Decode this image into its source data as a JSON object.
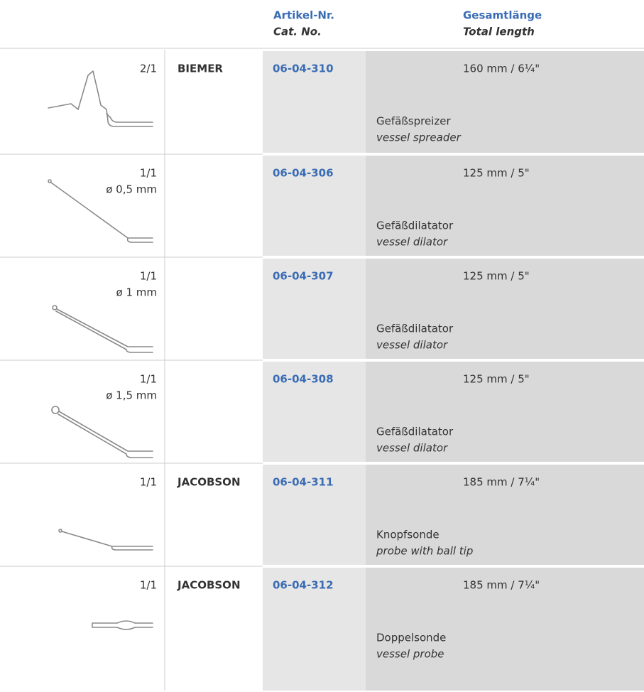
{
  "header": {
    "cat_no_de": "Artikel-Nr.",
    "cat_no_en": "Cat. No.",
    "length_de": "Gesamtlänge",
    "length_en": "Total length"
  },
  "rows": [
    {
      "scale": "2/1",
      "name": "BIEMER",
      "cat_no": "06-04-310",
      "length": "160 mm / 6¼\"",
      "desc_de": "Gefäßspreizer",
      "desc_en": "vessel spreader"
    },
    {
      "scale": "1/1",
      "diameter": "ø 0,5 mm",
      "cat_no": "06-04-306",
      "length": "125 mm / 5\"",
      "desc_de": "Gefäßdilatator",
      "desc_en": "vessel dilator"
    },
    {
      "scale": "1/1",
      "diameter": "ø 1 mm",
      "cat_no": "06-04-307",
      "length": "125 mm / 5\"",
      "desc_de": "Gefäßdilatator",
      "desc_en": "vessel dilator"
    },
    {
      "scale": "1/1",
      "diameter": "ø 1,5 mm",
      "cat_no": "06-04-308",
      "length": "125 mm / 5\"",
      "desc_de": "Gefäßdilatator",
      "desc_en": "vessel dilator"
    },
    {
      "scale": "1/1",
      "name": "JACOBSON",
      "cat_no": "06-04-311",
      "length": "185 mm / 7¼\"",
      "desc_de": "Knopfsonde",
      "desc_en": "probe with ball tip"
    },
    {
      "scale": "1/1",
      "name": "JACOBSON",
      "cat_no": "06-04-312",
      "length": "185 mm / 7¼\"",
      "desc_de": "Doppelsonde",
      "desc_en": "vessel probe"
    }
  ]
}
